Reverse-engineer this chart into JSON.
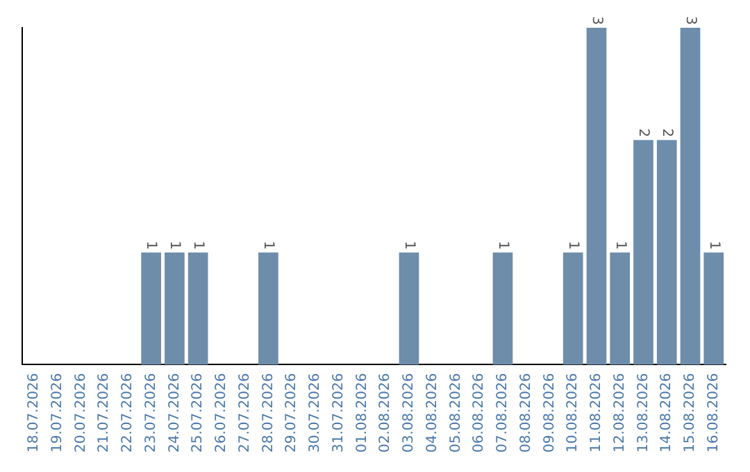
{
  "chart_data": {
    "type": "bar",
    "categories": [
      "18.07.2026",
      "19.07.2026",
      "20.07.2026",
      "21.07.2026",
      "22.07.2026",
      "23.07.2026",
      "24.07.2026",
      "25.07.2026",
      "26.07.2026",
      "27.07.2026",
      "28.07.2026",
      "29.07.2026",
      "30.07.2026",
      "31.07.2026",
      "01.08.2026",
      "02.08.2026",
      "03.08.2026",
      "04.08.2026",
      "05.08.2026",
      "06.08.2026",
      "07.08.2026",
      "08.08.2026",
      "09.08.2026",
      "10.08.2026",
      "11.08.2026",
      "12.08.2026",
      "13.08.2026",
      "14.08.2026",
      "15.08.2026",
      "16.08.2026"
    ],
    "values": [
      0,
      0,
      0,
      0,
      0,
      1,
      1,
      1,
      0,
      0,
      1,
      0,
      0,
      0,
      0,
      0,
      1,
      0,
      0,
      0,
      1,
      0,
      0,
      1,
      3,
      1,
      2,
      2,
      3,
      1
    ],
    "value_labels": [
      null,
      null,
      null,
      null,
      null,
      "1",
      "1",
      "1",
      null,
      null,
      "1",
      null,
      null,
      null,
      null,
      null,
      "1",
      null,
      null,
      null,
      "1",
      null,
      null,
      "1",
      "3",
      "1",
      "2",
      "2",
      "3",
      "1"
    ],
    "color": "#6d8dab",
    "grid": false,
    "legend": false,
    "tick_labels": "x"
  }
}
